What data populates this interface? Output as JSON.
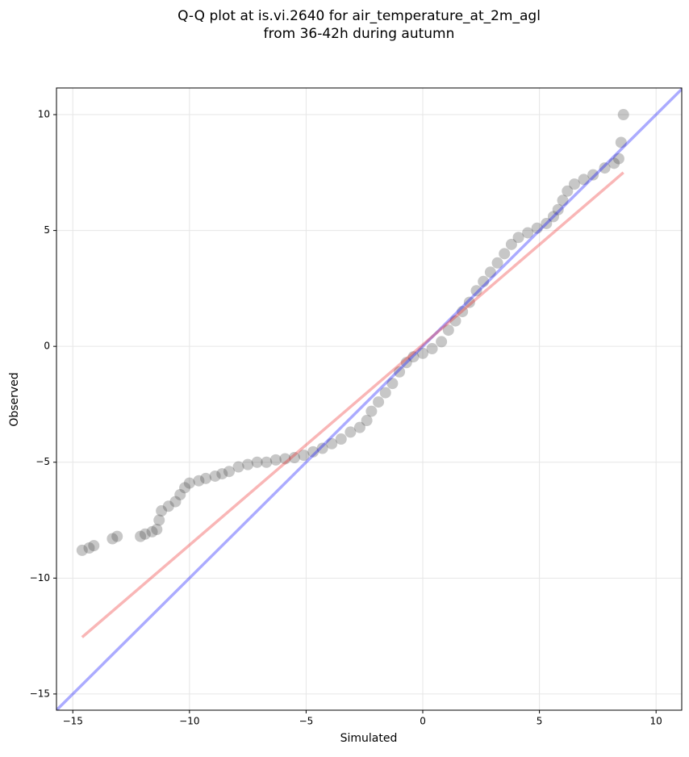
{
  "chart_data": {
    "type": "scatter",
    "title": [
      "Q-Q plot at is.vi.2640 for air_temperature_at_2m_agl",
      "from 36-42h during autumn"
    ],
    "x_label": "Simulated",
    "y_label": "Observed",
    "xlim": [
      -15.7,
      11.1
    ],
    "ylim": [
      -15.7,
      11.15
    ],
    "xticks": [
      {
        "value": -15,
        "label": "−15"
      },
      {
        "value": -10,
        "label": "−10"
      },
      {
        "value": -5,
        "label": "−5"
      },
      0,
      5,
      10
    ],
    "yticks": [
      {
        "value": -15,
        "label": "−15"
      },
      {
        "value": -10,
        "label": "−10"
      },
      {
        "value": -5,
        "label": "−5"
      },
      0,
      5,
      10
    ],
    "grid": true,
    "points": {
      "color": "#444444",
      "x": [
        -14.6,
        -14.3,
        -14.1,
        -13.3,
        -13.1,
        -12.1,
        -11.9,
        -11.6,
        -11.4,
        -11.3,
        -11.2,
        -10.9,
        -10.6,
        -10.4,
        -10.2,
        -10.0,
        -9.6,
        -9.3,
        -8.9,
        -8.6,
        -8.3,
        -7.9,
        -7.5,
        -7.1,
        -6.7,
        -6.3,
        -5.9,
        -5.5,
        -5.1,
        -4.7,
        -4.3,
        -3.9,
        -3.5,
        -3.1,
        -2.7,
        -2.4,
        -2.2,
        -1.9,
        -1.6,
        -1.3,
        -1.0,
        -0.7,
        -0.4,
        0,
        0.4,
        0.8,
        1.1,
        1.4,
        1.7,
        2.0,
        2.3,
        2.6,
        2.9,
        3.2,
        3.5,
        3.8,
        4.1,
        4.5,
        4.9,
        5.3,
        5.6,
        5.8,
        6.0,
        6.2,
        6.5,
        6.9,
        7.3,
        7.8,
        8.2,
        8.4,
        8.5,
        8.6
      ],
      "values": [
        -8.8,
        -8.7,
        -8.6,
        -8.3,
        -8.2,
        -8.2,
        -8.1,
        -8.0,
        -7.9,
        -7.5,
        -7.1,
        -6.9,
        -6.7,
        -6.4,
        -6.1,
        -5.9,
        -5.8,
        -5.7,
        -5.6,
        -5.5,
        -5.4,
        -5.2,
        -5.1,
        -5.0,
        -5.0,
        -4.9,
        -4.85,
        -4.8,
        -4.7,
        -4.55,
        -4.4,
        -4.2,
        -4.0,
        -3.7,
        -3.5,
        -3.2,
        -2.8,
        -2.4,
        -2.0,
        -1.6,
        -1.1,
        -0.7,
        -0.45,
        -0.3,
        -0.1,
        0.2,
        0.7,
        1.1,
        1.5,
        1.9,
        2.4,
        2.8,
        3.2,
        3.6,
        4.0,
        4.4,
        4.7,
        4.9,
        5.1,
        5.3,
        5.6,
        5.9,
        6.3,
        6.7,
        7.0,
        7.2,
        7.4,
        7.7,
        7.9,
        8.1,
        8.8,
        10.0
      ]
    },
    "lines": [
      {
        "color": "#0000ff",
        "x": [
          -15.7,
          11.1
        ],
        "values": [
          -15.7,
          11.1
        ]
      },
      {
        "color": "#ee2222",
        "x": [
          -14.6,
          8.6
        ],
        "values": [
          -12.55,
          7.5
        ]
      }
    ]
  }
}
